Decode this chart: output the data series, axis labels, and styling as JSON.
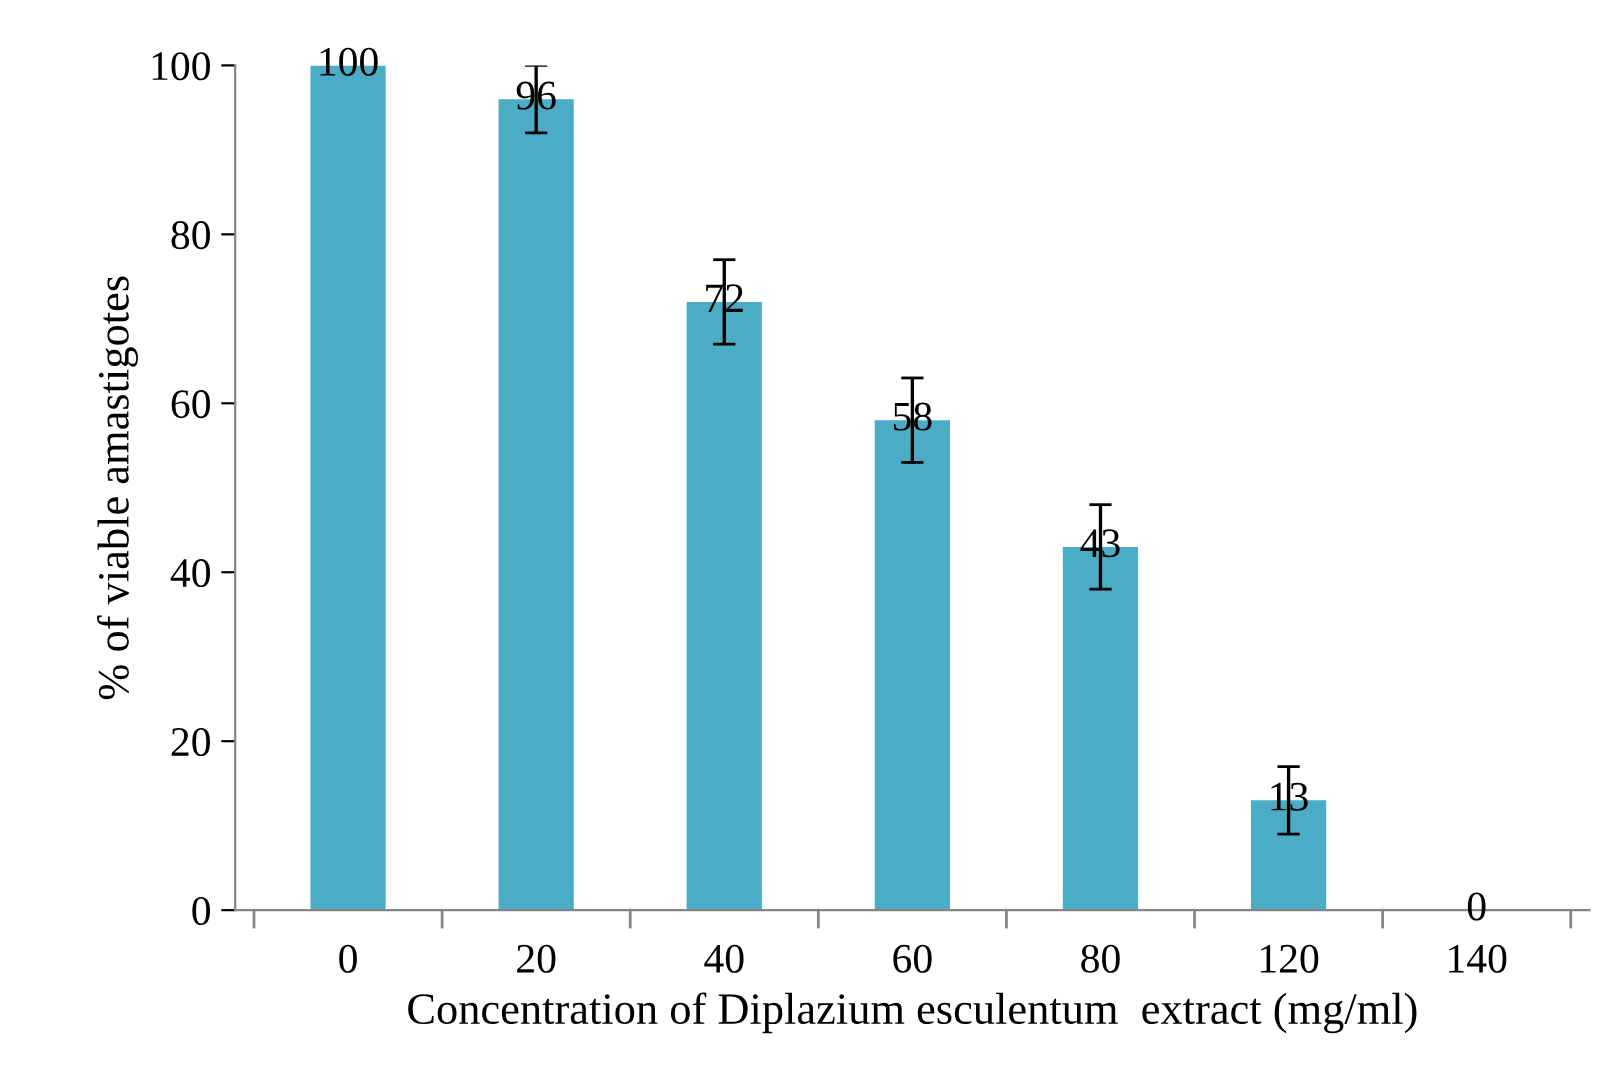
{
  "chart_data": {
    "type": "bar",
    "xlabel": "Concentration of Diplazium esculentum  extract (mg/ml)",
    "ylabel": "% of viable amastigotes",
    "categories": [
      "0",
      "20",
      "40",
      "60",
      "80",
      "120",
      "140"
    ],
    "values": [
      100,
      96,
      72,
      58,
      43,
      13,
      0
    ],
    "errors": [
      null,
      4,
      5,
      5,
      5,
      4,
      null
    ],
    "color": "#4bacc6",
    "ylim": [
      0,
      100
    ],
    "yticks": [
      0,
      20,
      40,
      60,
      80,
      100
    ],
    "data_labels": true,
    "grid": false,
    "legend": false
  }
}
